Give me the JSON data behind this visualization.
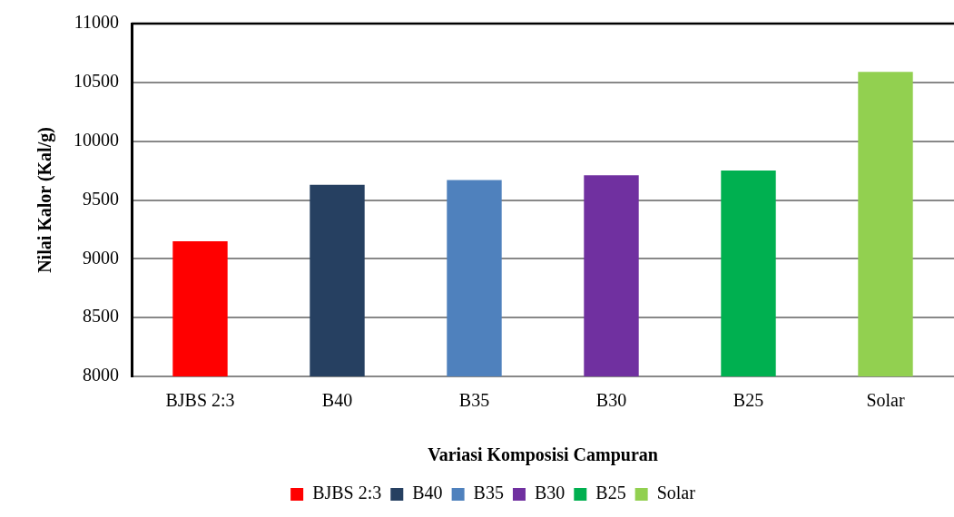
{
  "chart_data": {
    "type": "bar",
    "xlabel": "Variasi Komposisi Campuran",
    "ylabel": "Nilai Kalor (Kal/g)",
    "categories": [
      "BJBS 2:3",
      "B40",
      "B35",
      "B30",
      "B25",
      "Solar"
    ],
    "series": [
      {
        "name": "BJBS 2:3",
        "color": "#ff0000",
        "values": [
          9150,
          null,
          null,
          null,
          null,
          null
        ]
      },
      {
        "name": "B40",
        "color": "#264061",
        "values": [
          null,
          9630,
          null,
          null,
          null,
          null
        ]
      },
      {
        "name": "B35",
        "color": "#4f81bd",
        "values": [
          null,
          null,
          9670,
          null,
          null,
          null
        ]
      },
      {
        "name": "B30",
        "color": "#7030a0",
        "values": [
          null,
          null,
          null,
          9710,
          null,
          null
        ]
      },
      {
        "name": "B25",
        "color": "#00b050",
        "values": [
          null,
          null,
          null,
          null,
          9750,
          null
        ]
      },
      {
        "name": "Solar",
        "color": "#92d050",
        "values": [
          null,
          null,
          null,
          null,
          null,
          10590
        ]
      }
    ],
    "ylim": [
      8000,
      11000
    ],
    "yticks": [
      8000,
      8500,
      9000,
      9500,
      10000,
      10500,
      11000
    ],
    "grid": "y",
    "legend": "bottom"
  }
}
